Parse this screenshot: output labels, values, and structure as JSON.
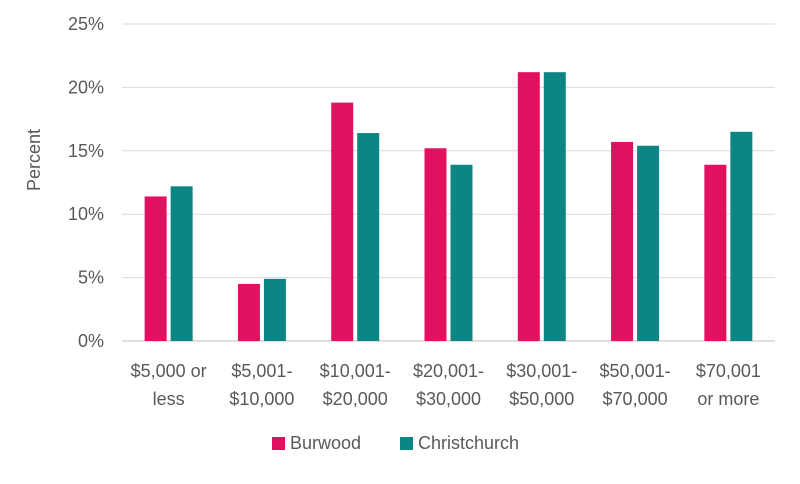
{
  "chart_data": {
    "type": "bar",
    "title": "",
    "xlabel": "",
    "ylabel": "Percent",
    "ylim": [
      0,
      25
    ],
    "yticks": [
      0,
      5,
      10,
      15,
      20,
      25
    ],
    "ytick_labels": [
      "0%",
      "5%",
      "10%",
      "15%",
      "20%",
      "25%"
    ],
    "grid": true,
    "legend_position": "bottom",
    "categories": [
      [
        "$5,000 or",
        "less"
      ],
      [
        "$5,001-",
        "$10,000"
      ],
      [
        "$10,001-",
        "$20,000"
      ],
      [
        "$20,001-",
        "$30,000"
      ],
      [
        "$30,001-",
        "$50,000"
      ],
      [
        "$50,001-",
        "$70,000"
      ],
      [
        "$70,001",
        "or more"
      ]
    ],
    "series": [
      {
        "name": "Burwood",
        "color": "#E0115F",
        "values": [
          11.4,
          4.5,
          18.8,
          15.2,
          21.2,
          15.7,
          13.9
        ]
      },
      {
        "name": "Christchurch",
        "color": "#0E8585",
        "values": [
          12.2,
          4.9,
          16.4,
          13.9,
          21.2,
          15.4,
          16.5
        ]
      }
    ]
  }
}
